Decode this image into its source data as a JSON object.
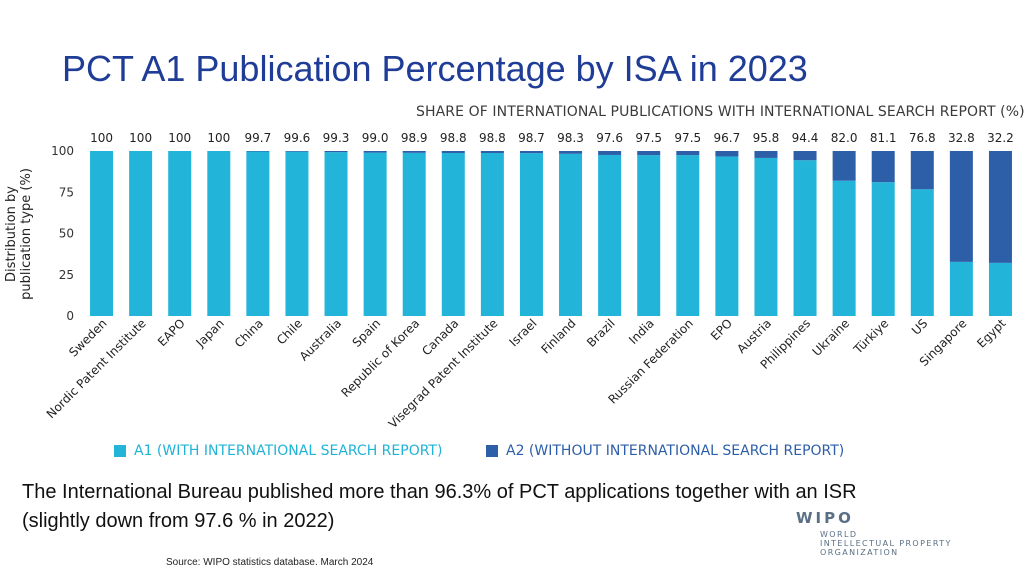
{
  "page": {
    "title": "PCT A1 Publication Percentage by ISA in 2023",
    "body_text": "The International Bureau published more than 96.3% of PCT applications together with an ISR (slightly down from 97.6 % in 2022)",
    "source": "Source:  WIPO statistics database. March 2024"
  },
  "logo": {
    "name": "WIPO",
    "lines": [
      "WORLD",
      "INTELLECTUAL PROPERTY",
      "ORGANIZATION"
    ]
  },
  "chart_data": {
    "type": "bar",
    "stacked": true,
    "title": "SHARE OF INTERNATIONAL PUBLICATIONS WITH INTERNATIONAL SEARCH REPORT (%)",
    "ylabel": "Distribution by publication type (%)",
    "ylabel_lines": [
      "Distribution by",
      "publication type (%)"
    ],
    "ylim": [
      0,
      100
    ],
    "yticks": [
      0,
      25,
      50,
      75,
      100
    ],
    "grid": false,
    "legend_position": "bottom",
    "categories": [
      "Sweden",
      "Nordic Patent Institute",
      "EAPO",
      "Japan",
      "China",
      "Chile",
      "Australia",
      "Spain",
      "Republic of Korea",
      "Canada",
      "Visegrad Patent Institute",
      "Israel",
      "Finland",
      "Brazil",
      "India",
      "Russian Federation",
      "EPO",
      "Austria",
      "Philippines",
      "Ukraine",
      "Türkiye",
      "US",
      "Singapore",
      "Egypt"
    ],
    "data_labels": [
      "100",
      "100",
      "100",
      "100",
      "99.7",
      "99.6",
      "99.3",
      "99.0",
      "98.9",
      "98.8",
      "98.8",
      "98.7",
      "98.3",
      "97.6",
      "97.5",
      "97.5",
      "96.7",
      "95.8",
      "94.4",
      "82.0",
      "81.1",
      "76.8",
      "32.8",
      "32.2"
    ],
    "series": [
      {
        "name": "A1 (WITH INTERNATIONAL SEARCH REPORT)",
        "color": "#22b5d9",
        "values": [
          100,
          100,
          100,
          100,
          99.7,
          99.6,
          99.3,
          99.0,
          98.9,
          98.8,
          98.8,
          98.7,
          98.3,
          97.6,
          97.5,
          97.5,
          96.7,
          95.8,
          94.4,
          82.0,
          81.1,
          76.8,
          32.8,
          32.2
        ]
      },
      {
        "name": "A2 (WITHOUT INTERNATIONAL SEARCH REPORT)",
        "color": "#2d5ea8",
        "values": [
          0,
          0,
          0,
          0,
          0.3,
          0.4,
          0.7,
          1.0,
          1.1,
          1.2,
          1.2,
          1.3,
          1.7,
          2.4,
          2.5,
          2.5,
          3.3,
          4.2,
          5.6,
          18.0,
          18.9,
          23.2,
          67.2,
          67.8
        ]
      }
    ]
  }
}
